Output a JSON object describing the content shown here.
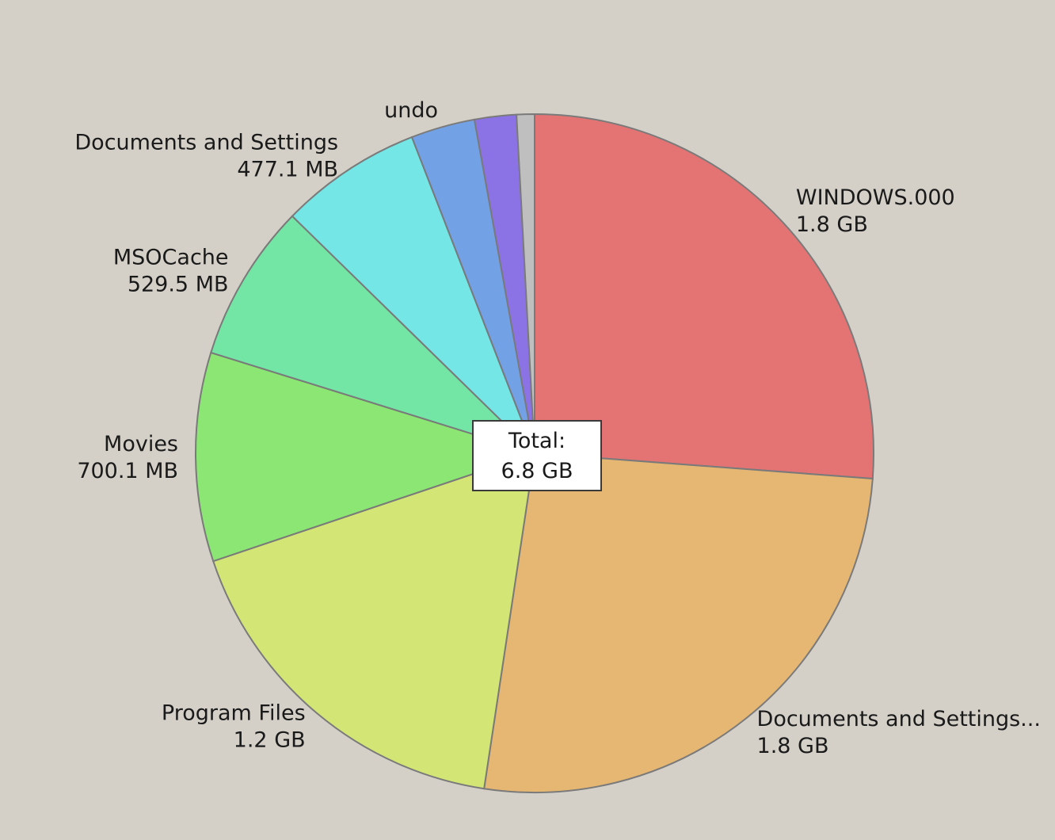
{
  "chart_data": {
    "type": "pie",
    "center_label": {
      "line1": "Total:",
      "line2": "6.8 GB"
    },
    "slices": [
      {
        "name": "WINDOWS.000",
        "value_label": "1.8 GB",
        "value_mb": 1843,
        "color": "#e47474"
      },
      {
        "name": "Documents and Settings...",
        "value_label": "1.8 GB",
        "value_mb": 1843,
        "color": "#e6b773"
      },
      {
        "name": "Program Files",
        "value_label": "1.2 GB",
        "value_mb": 1229,
        "color": "#d3e574"
      },
      {
        "name": "Movies",
        "value_label": "700.1 MB",
        "value_mb": 700.1,
        "color": "#8be673"
      },
      {
        "name": "MSOCache",
        "value_label": "529.5 MB",
        "value_mb": 529.5,
        "color": "#73e6a5"
      },
      {
        "name": "Documents and Settings",
        "value_label": "477.1 MB",
        "value_mb": 477.1,
        "color": "#73e6e5"
      },
      {
        "name": "undo",
        "value_label": "",
        "value_mb": 215,
        "color": "#73a1e6"
      },
      {
        "name": "",
        "value_label": "",
        "value_mb": 140,
        "color": "#8b73e6"
      },
      {
        "name": "",
        "value_label": "",
        "value_mb": 60,
        "color": "#bfbfbf"
      }
    ]
  }
}
